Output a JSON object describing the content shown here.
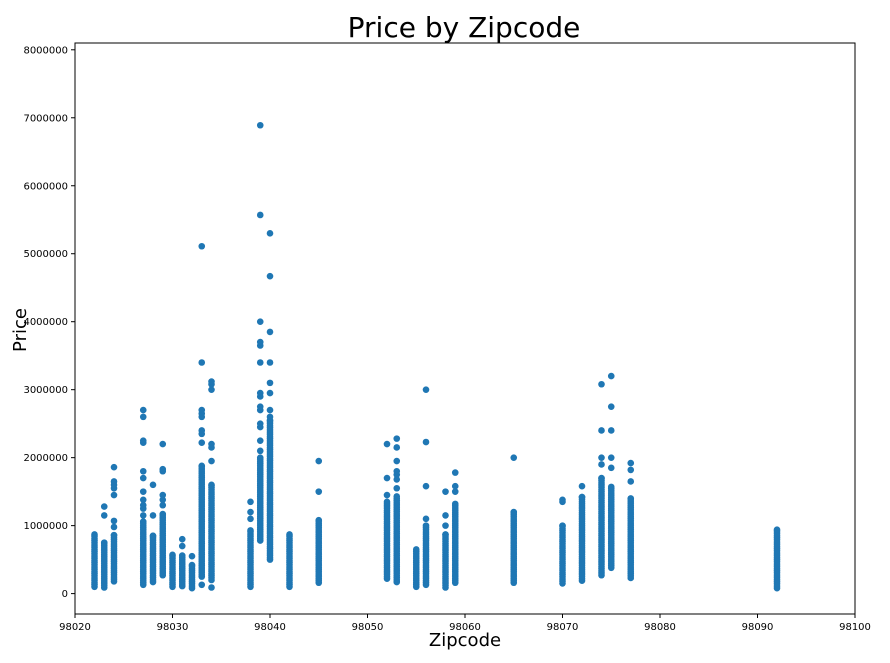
{
  "chart_data": {
    "type": "scatter",
    "title": "Price by Zipcode",
    "xlabel": "Zipcode",
    "ylabel": "Price",
    "xlim": [
      98020,
      98100
    ],
    "ylim": [
      -300000,
      8100000
    ],
    "xticks": [
      98020,
      98030,
      98040,
      98050,
      98060,
      98070,
      98080,
      98090,
      98100
    ],
    "yticks": [
      0,
      1000000,
      2000000,
      3000000,
      4000000,
      5000000,
      6000000,
      7000000,
      8000000
    ],
    "grid": false,
    "color": "#1f77b4",
    "columns": [
      {
        "zip": 98022,
        "min": 100000,
        "max": 870000,
        "outliers": []
      },
      {
        "zip": 98023,
        "min": 90000,
        "max": 750000,
        "outliers": [
          1150000,
          1280000
        ]
      },
      {
        "zip": 98024,
        "min": 180000,
        "max": 860000,
        "outliers": [
          980000,
          1070000,
          1450000,
          1550000,
          1600000,
          1650000,
          1860000
        ]
      },
      {
        "zip": 98027,
        "min": 130000,
        "max": 1060000,
        "outliers": [
          1150000,
          1250000,
          1300000,
          1380000,
          1500000,
          1700000,
          1800000,
          2220000,
          2250000,
          2600000,
          2700000
        ]
      },
      {
        "zip": 98028,
        "min": 170000,
        "max": 850000,
        "outliers": [
          1150000,
          1600000
        ]
      },
      {
        "zip": 98029,
        "min": 270000,
        "max": 1170000,
        "outliers": [
          1300000,
          1380000,
          1450000,
          1800000,
          1830000,
          2200000
        ]
      },
      {
        "zip": 98030,
        "min": 100000,
        "max": 570000,
        "outliers": []
      },
      {
        "zip": 98031,
        "min": 110000,
        "max": 560000,
        "outliers": [
          700000,
          800000
        ]
      },
      {
        "zip": 98032,
        "min": 80000,
        "max": 420000,
        "outliers": [
          550000
        ]
      },
      {
        "zip": 98033,
        "min": 250000,
        "max": 1880000,
        "outliers": [
          130000,
          2220000,
          2350000,
          2400000,
          2600000,
          2650000,
          2700000,
          3400000,
          5110000
        ]
      },
      {
        "zip": 98034,
        "min": 200000,
        "max": 1600000,
        "outliers": [
          90000,
          1950000,
          2150000,
          2200000,
          3000000,
          3080000,
          3120000
        ]
      },
      {
        "zip": 98038,
        "min": 100000,
        "max": 930000,
        "outliers": [
          1100000,
          1200000,
          1350000
        ]
      },
      {
        "zip": 98039,
        "min": 780000,
        "max": 2000000,
        "outliers": [
          2100000,
          2250000,
          2450000,
          2500000,
          2700000,
          2750000,
          2900000,
          2950000,
          3400000,
          3650000,
          3700000,
          4000000,
          5570000,
          6890000
        ]
      },
      {
        "zip": 98040,
        "min": 500000,
        "max": 2550000,
        "outliers": [
          2600000,
          2700000,
          2950000,
          3100000,
          3400000,
          3850000,
          4670000,
          5300000
        ]
      },
      {
        "zip": 98042,
        "min": 100000,
        "max": 870000,
        "outliers": []
      },
      {
        "zip": 98045,
        "min": 160000,
        "max": 1080000,
        "outliers": [
          1500000,
          1950000
        ]
      },
      {
        "zip": 98052,
        "min": 220000,
        "max": 1350000,
        "outliers": [
          1450000,
          1700000,
          2200000
        ]
      },
      {
        "zip": 98053,
        "min": 170000,
        "max": 1430000,
        "outliers": [
          1550000,
          1680000,
          1750000,
          1800000,
          1950000,
          2150000,
          2280000
        ]
      },
      {
        "zip": 98055,
        "min": 100000,
        "max": 650000,
        "outliers": []
      },
      {
        "zip": 98056,
        "min": 130000,
        "max": 1000000,
        "outliers": [
          1100000,
          1580000,
          2230000,
          3000000
        ]
      },
      {
        "zip": 98058,
        "min": 90000,
        "max": 870000,
        "outliers": [
          1000000,
          1150000,
          1500000
        ]
      },
      {
        "zip": 98059,
        "min": 160000,
        "max": 1320000,
        "outliers": [
          1500000,
          1580000,
          1780000
        ]
      },
      {
        "zip": 98065,
        "min": 160000,
        "max": 1200000,
        "outliers": [
          2000000
        ]
      },
      {
        "zip": 98070,
        "min": 150000,
        "max": 1000000,
        "outliers": [
          1350000,
          1380000
        ]
      },
      {
        "zip": 98072,
        "min": 190000,
        "max": 1420000,
        "outliers": [
          1580000
        ]
      },
      {
        "zip": 98074,
        "min": 270000,
        "max": 1700000,
        "outliers": [
          1900000,
          2000000,
          2400000,
          3080000
        ]
      },
      {
        "zip": 98075,
        "min": 380000,
        "max": 1570000,
        "outliers": [
          1850000,
          2000000,
          2400000,
          2750000,
          3200000
        ]
      },
      {
        "zip": 98077,
        "min": 230000,
        "max": 1400000,
        "outliers": [
          1650000,
          1820000,
          1920000
        ]
      },
      {
        "zip": 98092,
        "min": 80000,
        "max": 940000,
        "outliers": []
      }
    ]
  }
}
